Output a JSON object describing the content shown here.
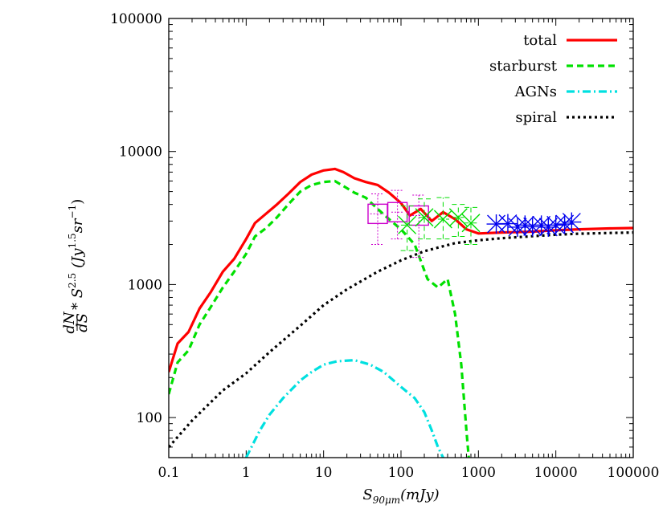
{
  "chart_data": {
    "type": "line",
    "xscale": "log",
    "yscale": "log",
    "xlim": [
      0.1,
      100000
    ],
    "ylim": [
      50,
      100000
    ],
    "xlabel": "S",
    "xlabel_sub": "90μm",
    "xlabel_unit": "(mJy)",
    "ylabel_frac_num": "dN",
    "ylabel_frac_den": "dS",
    "ylabel_rest": "* S",
    "ylabel_rest_sup": "2.5",
    "ylabel_unit": "(Jy",
    "ylabel_unit_sup": "1.5",
    "ylabel_unit_mid": "sr",
    "ylabel_unit_sup2": "−1",
    "ylabel_unit_end": ")",
    "x_ticks": [
      {
        "value": 0.1,
        "label": "0.1"
      },
      {
        "value": 1,
        "label": "1"
      },
      {
        "value": 10,
        "label": "10"
      },
      {
        "value": 100,
        "label": "100"
      },
      {
        "value": 1000,
        "label": "1000"
      },
      {
        "value": 10000,
        "label": "10000"
      },
      {
        "value": 100000,
        "label": "100000"
      }
    ],
    "y_ticks": [
      {
        "value": 100,
        "label": "100"
      },
      {
        "value": 1000,
        "label": "1000"
      },
      {
        "value": 10000,
        "label": "10000"
      },
      {
        "value": 100000,
        "label": "100000"
      }
    ],
    "legend_position": "top-right",
    "series": [
      {
        "name": "total",
        "color": "#ff0000",
        "dash": "solid",
        "x": [
          0.1,
          0.13,
          0.18,
          0.25,
          0.35,
          0.5,
          0.7,
          1,
          1.3,
          1.8,
          2.5,
          3.5,
          5,
          7,
          10,
          14,
          18,
          25,
          35,
          50,
          70,
          100,
          130,
          180,
          250,
          350,
          500,
          700,
          1000,
          2000,
          5000,
          10000,
          20000,
          50000,
          100000
        ],
        "y": [
          220,
          360,
          440,
          660,
          880,
          1250,
          1560,
          2200,
          2900,
          3400,
          4000,
          4800,
          5900,
          6700,
          7200,
          7400,
          7000,
          6300,
          5900,
          5600,
          4900,
          4100,
          3300,
          3700,
          3000,
          3500,
          3100,
          2600,
          2420,
          2460,
          2500,
          2560,
          2600,
          2640,
          2660
        ]
      },
      {
        "name": "starburst",
        "color": "#00e000",
        "dash": "dashed",
        "x": [
          0.1,
          0.13,
          0.18,
          0.25,
          0.35,
          0.5,
          0.7,
          1,
          1.3,
          1.8,
          2.5,
          3.5,
          5,
          7,
          10,
          14,
          18,
          25,
          35,
          50,
          70,
          100,
          150,
          220,
          300,
          400,
          500,
          600,
          700,
          750
        ],
        "y": [
          150,
          260,
          320,
          500,
          680,
          950,
          1250,
          1700,
          2300,
          2650,
          3200,
          4000,
          5000,
          5600,
          5900,
          6000,
          5500,
          4900,
          4500,
          3700,
          3100,
          2600,
          2000,
          1100,
          950,
          1100,
          600,
          250,
          80,
          50
        ]
      },
      {
        "name": "AGNs",
        "color": "#00e0e0",
        "dash": "dashdot",
        "x": [
          1,
          1.5,
          2,
          3,
          5,
          7,
          10,
          15,
          25,
          40,
          60,
          100,
          150,
          200,
          250,
          300,
          350
        ],
        "y": [
          50,
          80,
          105,
          140,
          190,
          220,
          250,
          265,
          270,
          250,
          220,
          170,
          140,
          110,
          80,
          60,
          50
        ]
      },
      {
        "name": "spiral",
        "color": "#000000",
        "dash": "dotted",
        "x": [
          0.1,
          0.2,
          0.5,
          1,
          2,
          5,
          10,
          20,
          50,
          100,
          200,
          500,
          1000,
          2000,
          5000,
          10000,
          20000,
          50000,
          100000
        ],
        "y": [
          60,
          95,
          160,
          215,
          310,
          490,
          700,
          920,
          1250,
          1520,
          1780,
          2050,
          2150,
          2230,
          2310,
          2370,
          2410,
          2440,
          2460
        ]
      }
    ],
    "observations": [
      {
        "marker": "square",
        "color": "#cc00cc",
        "points": [
          {
            "x": 50,
            "y": 3400,
            "ylo": 2000,
            "yhi": 4800,
            "xlo": 40,
            "xhi": 60
          },
          {
            "x": 90,
            "y": 3500,
            "ylo": 2200,
            "yhi": 5100,
            "xlo": 75,
            "xhi": 110
          },
          {
            "x": 170,
            "y": 3300,
            "ylo": 1600,
            "yhi": 4700,
            "xlo": 140,
            "xhi": 200
          }
        ]
      },
      {
        "marker": "x",
        "color": "#00dd00",
        "points": [
          {
            "x": 120,
            "y": 2800,
            "ylo": 1800,
            "yhi": 3900,
            "xlo": 100,
            "xhi": 140
          },
          {
            "x": 200,
            "y": 3200,
            "ylo": 2200,
            "yhi": 4400,
            "xlo": 170,
            "xhi": 240
          },
          {
            "x": 350,
            "y": 3100,
            "ylo": 2200,
            "yhi": 4500,
            "xlo": 300,
            "xhi": 420
          },
          {
            "x": 550,
            "y": 3200,
            "ylo": 2300,
            "yhi": 4000,
            "xlo": 460,
            "xhi": 650
          },
          {
            "x": 800,
            "y": 2900,
            "ylo": 2000,
            "yhi": 3800,
            "xlo": 650,
            "xhi": 980
          }
        ]
      },
      {
        "marker": "asterisk",
        "color": "#0000ee",
        "points": [
          {
            "x": 1700,
            "y": 2850
          },
          {
            "x": 2400,
            "y": 2870
          },
          {
            "x": 3200,
            "y": 2700
          },
          {
            "x": 4000,
            "y": 2800
          },
          {
            "x": 5000,
            "y": 2720
          },
          {
            "x": 6500,
            "y": 2800
          },
          {
            "x": 8000,
            "y": 2700
          },
          {
            "x": 10000,
            "y": 2800
          },
          {
            "x": 13000,
            "y": 2850
          },
          {
            "x": 16000,
            "y": 2950
          }
        ]
      }
    ]
  }
}
